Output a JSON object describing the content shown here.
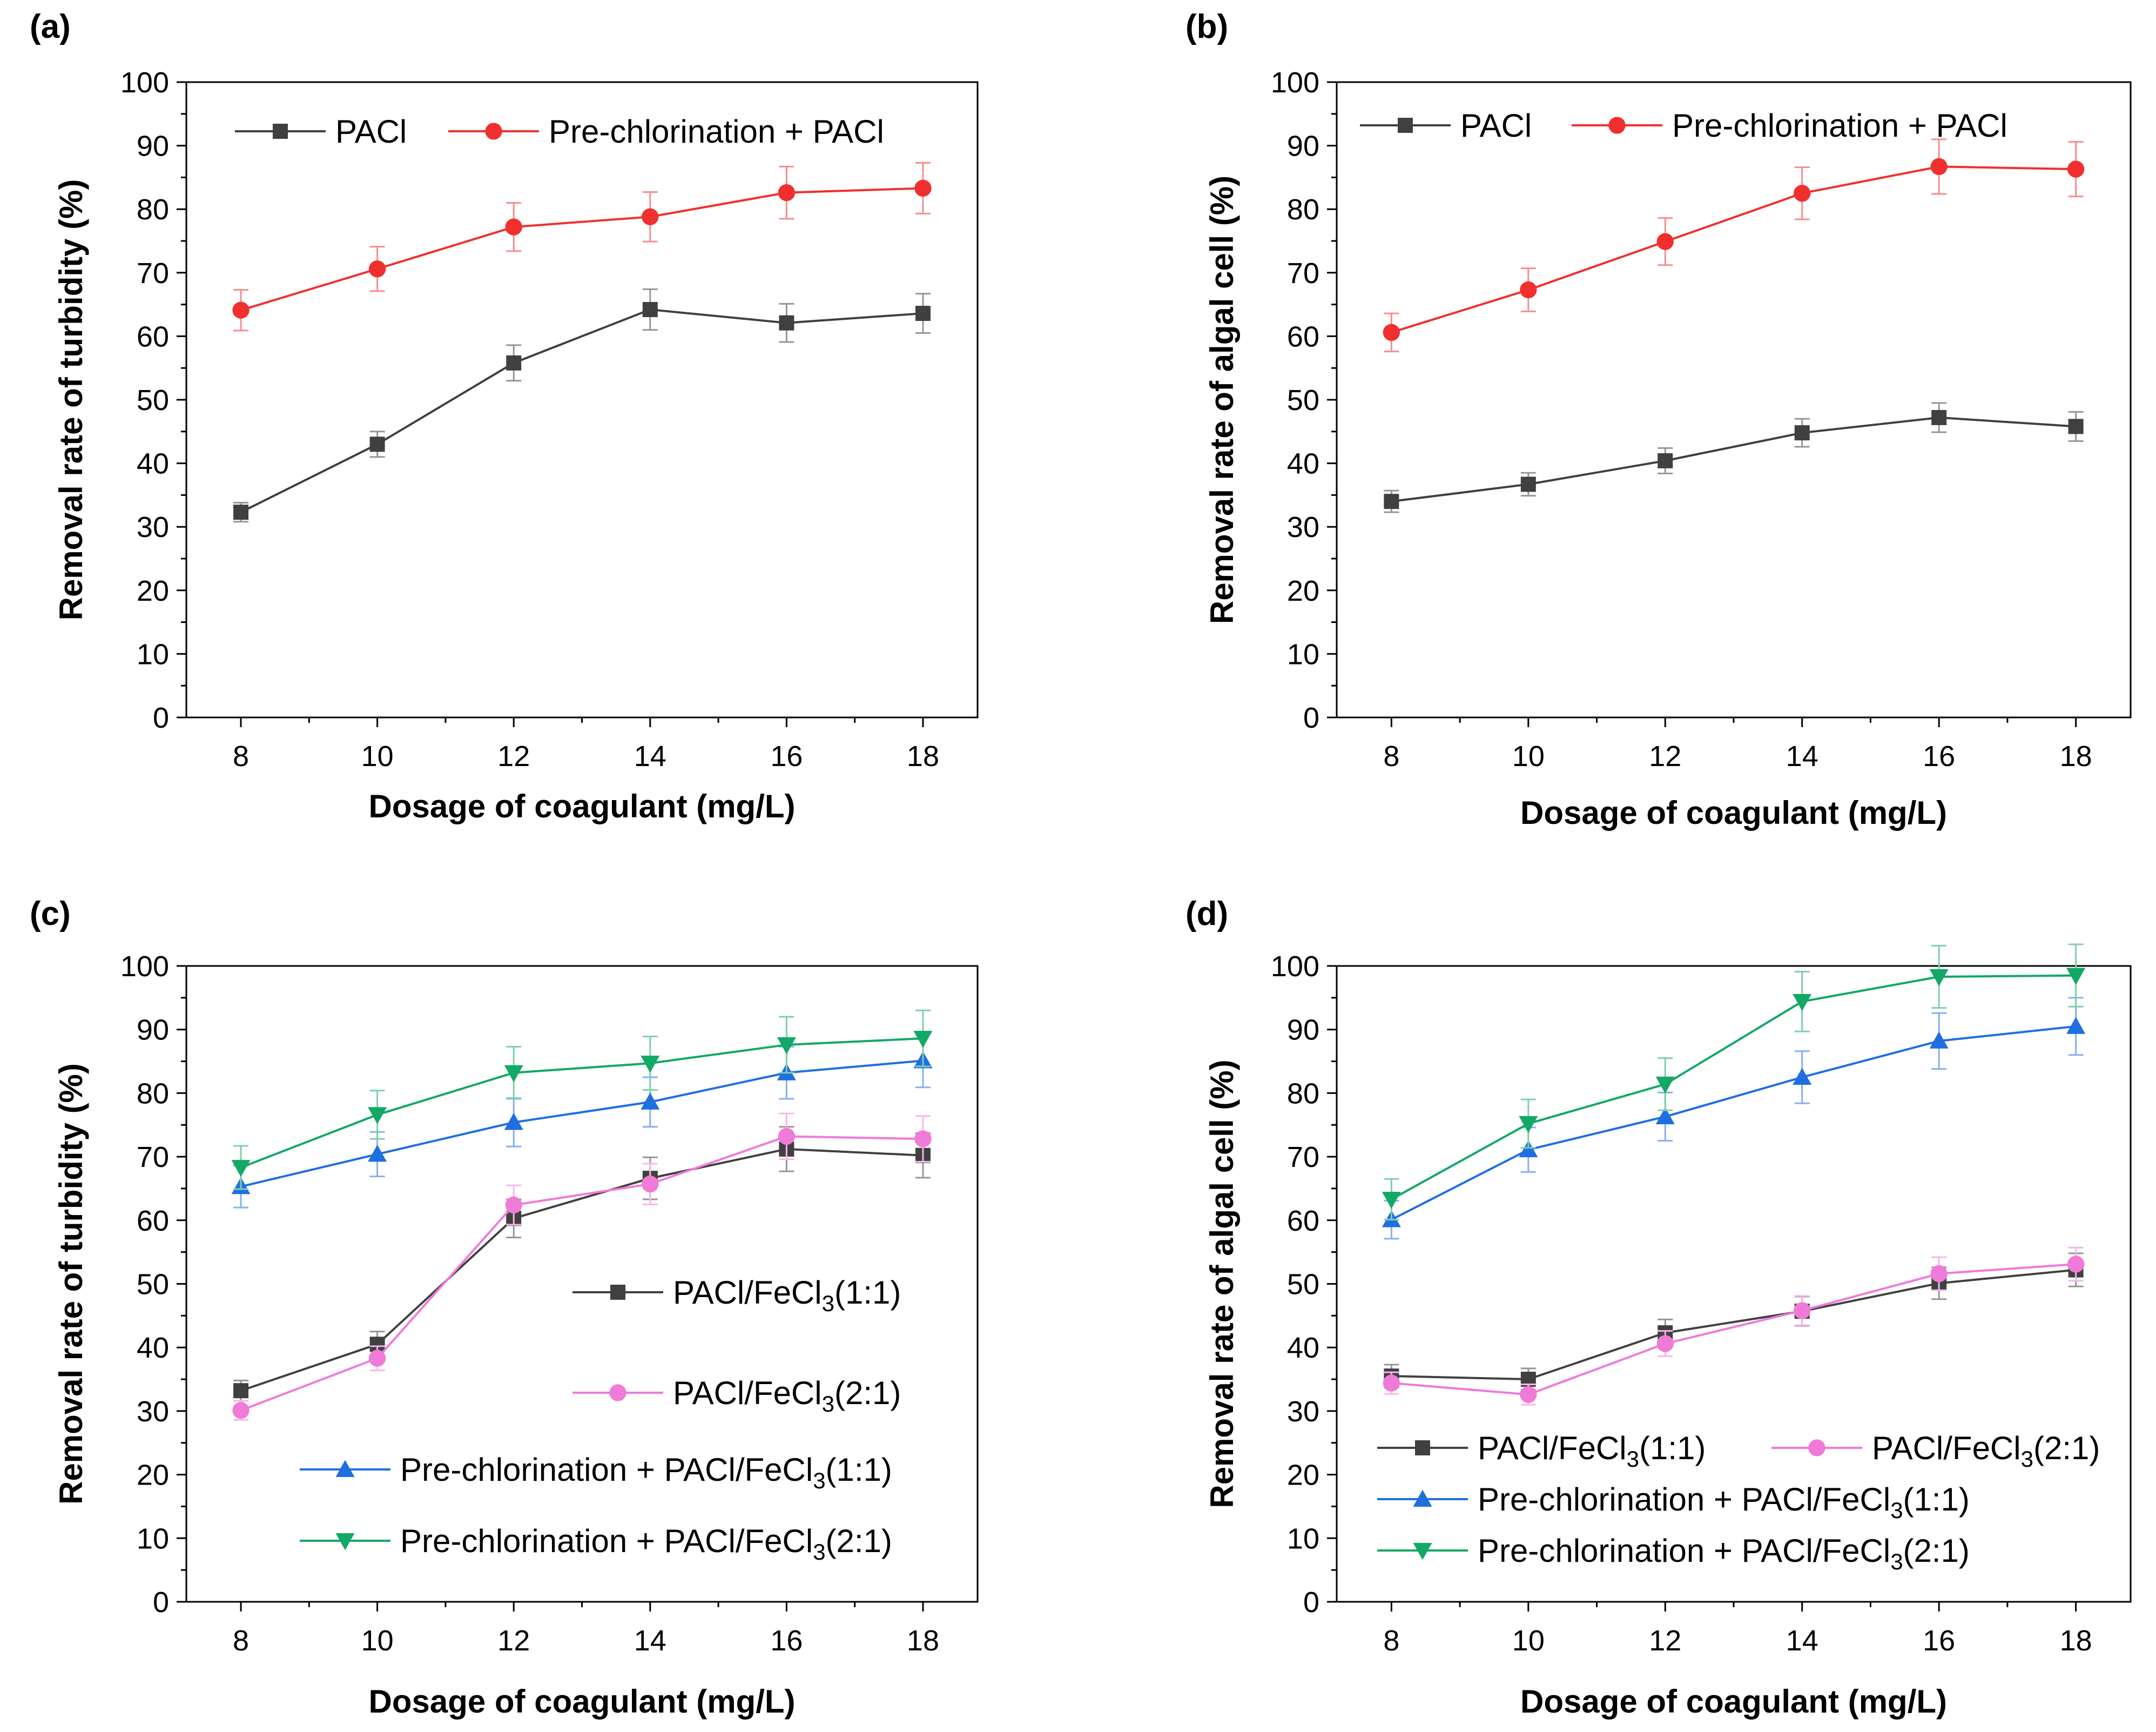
{
  "chart_data": [
    {
      "panel": "(a)",
      "type": "line",
      "xlabel": "Dosage of coagulant (mg/L)",
      "ylabel": "Removal rate of turbidity (%)",
      "xlim": [
        7.2,
        18.8
      ],
      "ylim": [
        0,
        100
      ],
      "x_ticks": [
        "8",
        "10",
        "12",
        "14",
        "16",
        "18"
      ],
      "y_ticks": [
        "0",
        "10",
        "20",
        "30",
        "40",
        "50",
        "60",
        "70",
        "80",
        "90",
        "100"
      ],
      "x": [
        8,
        10,
        12,
        14,
        16,
        18
      ],
      "legend_position": "top-left",
      "series": [
        {
          "name": "PACl",
          "sub": "",
          "tail": "",
          "color": "#404040",
          "marker": "square",
          "values": [
            32.3,
            43.0,
            55.8,
            64.2,
            62.1,
            63.6
          ],
          "errors": [
            1.5,
            2.0,
            2.8,
            3.2,
            3.0,
            3.1
          ]
        },
        {
          "name": "Pre-chlorination + PACl",
          "sub": "",
          "tail": "",
          "color": "#f0302f",
          "marker": "circle",
          "values": [
            64.1,
            70.6,
            77.2,
            78.8,
            82.6,
            83.3
          ],
          "errors": [
            3.2,
            3.5,
            3.8,
            3.9,
            4.1,
            4.0
          ]
        }
      ]
    },
    {
      "panel": "(b)",
      "type": "line",
      "xlabel": "Dosage of coagulant (mg/L)",
      "ylabel": "Removal rate of algal cell (%)",
      "xlim": [
        7.2,
        18.8
      ],
      "ylim": [
        0,
        100
      ],
      "x_ticks": [
        "8",
        "10",
        "12",
        "14",
        "16",
        "18"
      ],
      "y_ticks": [
        "0",
        "10",
        "20",
        "30",
        "40",
        "50",
        "60",
        "70",
        "80",
        "90",
        "100"
      ],
      "x": [
        8,
        10,
        12,
        14,
        16,
        18
      ],
      "legend_position": "top-left",
      "series": [
        {
          "name": "PACl",
          "sub": "",
          "tail": "",
          "color": "#404040",
          "marker": "square",
          "values": [
            34.0,
            36.7,
            40.4,
            44.8,
            47.2,
            45.8
          ],
          "errors": [
            1.7,
            1.8,
            2.0,
            2.2,
            2.3,
            2.3
          ]
        },
        {
          "name": "Pre-chlorination + PACl",
          "sub": "",
          "tail": "",
          "color": "#f0302f",
          "marker": "circle",
          "values": [
            60.6,
            67.3,
            74.9,
            82.5,
            86.7,
            86.3
          ],
          "errors": [
            3.0,
            3.4,
            3.7,
            4.1,
            4.3,
            4.3
          ]
        }
      ]
    },
    {
      "panel": "(c)",
      "type": "line",
      "xlabel": "Dosage of coagulant (mg/L)",
      "ylabel": "Removal rate of turbidity (%)",
      "xlim": [
        7.2,
        18.8
      ],
      "ylim": [
        0,
        100
      ],
      "x_ticks": [
        "8",
        "10",
        "12",
        "14",
        "16",
        "18"
      ],
      "y_ticks": [
        "0",
        "10",
        "20",
        "30",
        "40",
        "50",
        "60",
        "70",
        "80",
        "90",
        "100"
      ],
      "x": [
        8,
        10,
        12,
        14,
        16,
        18
      ],
      "legend_position": "lower-right",
      "series": [
        {
          "name": "PACl/FeCl",
          "sub": "3",
          "tail": "(1:1)",
          "color": "#404040",
          "marker": "square",
          "values": [
            33.2,
            40.5,
            60.3,
            66.6,
            71.2,
            70.2
          ],
          "errors": [
            1.6,
            2.0,
            3.0,
            3.3,
            3.5,
            3.5
          ]
        },
        {
          "name": "PACl/FeCl",
          "sub": "3",
          "tail": "(2:1)",
          "color": "#f07ad8",
          "marker": "circle",
          "values": [
            30.1,
            38.3,
            62.4,
            65.7,
            73.2,
            72.8
          ],
          "errors": [
            1.5,
            1.9,
            3.1,
            3.2,
            3.6,
            3.6
          ]
        },
        {
          "name": "Pre-chlorination + PACl/FeCl",
          "sub": "3",
          "tail": "(1:1)",
          "color": "#1f6fe0",
          "marker": "triangle-up",
          "values": [
            65.3,
            70.4,
            75.4,
            78.6,
            83.2,
            85.1
          ],
          "errors": [
            3.3,
            3.5,
            3.8,
            3.9,
            4.1,
            4.2
          ]
        },
        {
          "name": "Pre-chlorination + PACl/FeCl",
          "sub": "3",
          "tail": "(2:1)",
          "color": "#12a866",
          "marker": "triangle-down",
          "values": [
            68.3,
            76.6,
            83.2,
            84.7,
            87.6,
            88.6
          ],
          "errors": [
            3.4,
            3.8,
            4.1,
            4.2,
            4.4,
            4.4
          ]
        }
      ]
    },
    {
      "panel": "(d)",
      "type": "line",
      "xlabel": "Dosage of coagulant (mg/L)",
      "ylabel": "Removal rate of algal cell (%)",
      "xlim": [
        7.2,
        18.8
      ],
      "ylim": [
        0,
        100
      ],
      "x_ticks": [
        "8",
        "10",
        "12",
        "14",
        "16",
        "18"
      ],
      "y_ticks": [
        "0",
        "10",
        "20",
        "30",
        "40",
        "50",
        "60",
        "70",
        "80",
        "90",
        "100"
      ],
      "x": [
        8,
        10,
        12,
        14,
        16,
        18
      ],
      "legend_position": "lower-left",
      "series": [
        {
          "name": "PACl/FeCl",
          "sub": "3",
          "tail": "(1:1)",
          "color": "#404040",
          "marker": "square",
          "values": [
            35.5,
            35.0,
            42.3,
            45.7,
            50.1,
            52.2
          ],
          "errors": [
            1.8,
            1.7,
            2.1,
            2.3,
            2.5,
            2.6
          ]
        },
        {
          "name": "PACl/FeCl",
          "sub": "3",
          "tail": "(2:1)",
          "color": "#f07ad8",
          "marker": "circle",
          "values": [
            34.4,
            32.6,
            40.6,
            45.8,
            51.6,
            53.1
          ],
          "errors": [
            1.7,
            1.6,
            2.0,
            2.3,
            2.6,
            2.6
          ]
        },
        {
          "name": "Pre-chlorination + PACl/FeCl",
          "sub": "3",
          "tail": "(1:1)",
          "color": "#1f6fe0",
          "marker": "triangle-up",
          "values": [
            60.1,
            71.1,
            76.3,
            82.5,
            88.2,
            90.5
          ],
          "errors": [
            3.0,
            3.5,
            3.8,
            4.1,
            4.4,
            4.5
          ]
        },
        {
          "name": "Pre-chlorination + PACl/FeCl",
          "sub": "3",
          "tail": "(2:1)",
          "color": "#12a866",
          "marker": "triangle-down",
          "values": [
            63.3,
            75.2,
            81.4,
            94.4,
            98.3,
            98.5
          ],
          "errors": [
            3.2,
            3.8,
            4.1,
            4.7,
            4.9,
            4.9
          ]
        }
      ]
    }
  ]
}
